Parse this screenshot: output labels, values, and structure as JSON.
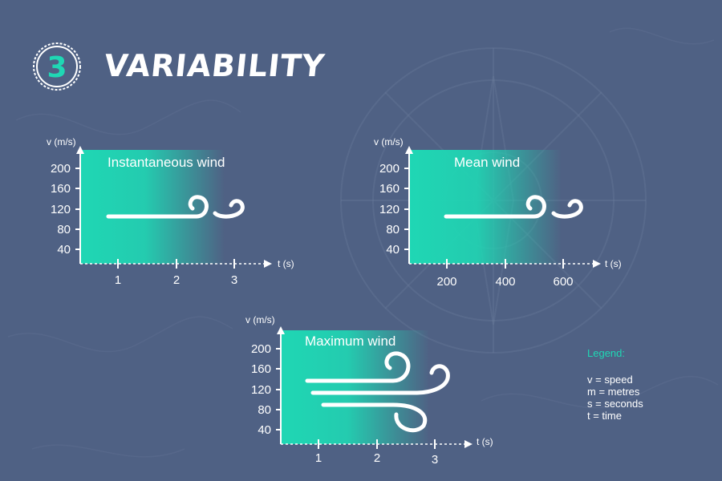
{
  "header": {
    "step_number": "3",
    "title": "VARIABILITY"
  },
  "colors": {
    "background": "#4f6184",
    "accent": "#1fd7b4",
    "text": "#ffffff"
  },
  "charts": [
    {
      "title": "Instantaneous wind",
      "y_label": "v (m/s)",
      "y_ticks": [
        "200",
        "160",
        "120",
        "80",
        "40"
      ],
      "x_label": "t (s)",
      "x_ticks": [
        "1",
        "2",
        "3"
      ],
      "icon": "wind-gust-icon"
    },
    {
      "title": "Mean wind",
      "y_label": "v (m/s)",
      "y_ticks": [
        "200",
        "160",
        "120",
        "80",
        "40"
      ],
      "x_label": "t (s)",
      "x_ticks": [
        "200",
        "400",
        "600"
      ],
      "icon": "wind-gust-icon"
    },
    {
      "title": "Maximum wind",
      "y_label": "v (m/s)",
      "y_ticks": [
        "200",
        "160",
        "120",
        "80",
        "40"
      ],
      "x_label": "t (s)",
      "x_ticks": [
        "1",
        "2",
        "3"
      ],
      "icon": "strong-wind-icon"
    }
  ],
  "legend": {
    "title": "Legend:",
    "items": [
      "v = speed",
      "m = metres",
      "s = seconds",
      "t = time"
    ]
  }
}
